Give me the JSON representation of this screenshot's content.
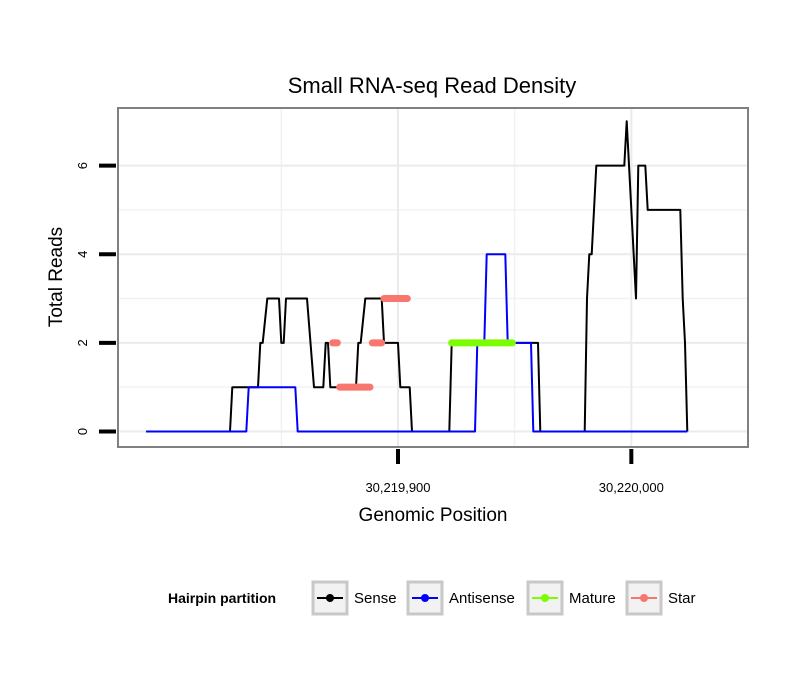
{
  "chart_data": {
    "type": "line",
    "title": "Small RNA-seq Read Density",
    "xlabel": "Genomic Position",
    "ylabel": "Total Reads",
    "xlim": [
      30219780,
      30220050
    ],
    "ylim": [
      -0.35,
      7.3
    ],
    "grid": true,
    "x_ticks": [
      {
        "value": 30219900,
        "label": "30,219,900"
      },
      {
        "value": 30220000,
        "label": "30,220,000"
      }
    ],
    "y_ticks": [
      {
        "value": 0,
        "label": "0"
      },
      {
        "value": 2,
        "label": "2"
      },
      {
        "value": 4,
        "label": "4"
      },
      {
        "value": 6,
        "label": "6"
      }
    ],
    "legend": {
      "title": "Hairpin partition",
      "placement": "bottom",
      "entries": [
        {
          "name": "Sense",
          "color": "#000000"
        },
        {
          "name": "Antisense",
          "color": "#0000ff"
        },
        {
          "name": "Mature",
          "color": "#7cfc00"
        },
        {
          "name": "Star",
          "color": "#f8766d"
        }
      ]
    },
    "series": [
      {
        "name": "Sense",
        "color": "#000000",
        "style": "line",
        "points": [
          [
            30219792,
            0
          ],
          [
            30219828,
            0
          ],
          [
            30219829,
            1
          ],
          [
            30219840,
            1
          ],
          [
            30219841,
            2
          ],
          [
            30219842,
            2
          ],
          [
            30219844,
            3
          ],
          [
            30219849,
            3
          ],
          [
            30219850,
            2
          ],
          [
            30219851,
            2
          ],
          [
            30219852,
            3
          ],
          [
            30219861,
            3
          ],
          [
            30219864,
            1
          ],
          [
            30219868,
            1
          ],
          [
            30219869,
            2
          ],
          [
            30219870,
            2
          ],
          [
            30219871,
            1
          ],
          [
            30219882,
            1
          ],
          [
            30219883,
            2
          ],
          [
            30219884,
            2
          ],
          [
            30219886,
            3
          ],
          [
            30219893,
            3
          ],
          [
            30219894,
            2
          ],
          [
            30219900,
            2
          ],
          [
            30219901,
            1
          ],
          [
            30219905,
            1
          ],
          [
            30219906,
            0
          ],
          [
            30219922,
            0
          ],
          [
            30219923,
            2
          ],
          [
            30219960,
            2
          ],
          [
            30219961,
            0
          ],
          [
            30219980,
            0
          ],
          [
            30219981,
            3
          ],
          [
            30219982,
            4
          ],
          [
            30219983,
            4
          ],
          [
            30219984,
            5
          ],
          [
            30219985,
            6
          ],
          [
            30219997,
            6
          ],
          [
            30219998,
            7
          ],
          [
            30220002,
            3
          ],
          [
            30220003,
            6
          ],
          [
            30220006,
            6
          ],
          [
            30220007,
            5
          ],
          [
            30220021,
            5
          ],
          [
            30220022,
            3
          ],
          [
            30220023,
            2
          ],
          [
            30220024,
            0
          ]
        ]
      },
      {
        "name": "Antisense",
        "color": "#0000ff",
        "style": "line",
        "points": [
          [
            30219792,
            0
          ],
          [
            30219835,
            0
          ],
          [
            30219836,
            1
          ],
          [
            30219856,
            1
          ],
          [
            30219857,
            0
          ],
          [
            30219933,
            0
          ],
          [
            30219934,
            2
          ],
          [
            30219937,
            2
          ],
          [
            30219938,
            4
          ],
          [
            30219946,
            4
          ],
          [
            30219947,
            2
          ],
          [
            30219957,
            2
          ],
          [
            30219958,
            0
          ],
          [
            30220024,
            0
          ]
        ]
      },
      {
        "name": "Mature",
        "color": "#7cfc00",
        "style": "segment",
        "points": [
          [
            30219923,
            2
          ],
          [
            30219949,
            2
          ]
        ]
      },
      {
        "name": "Star",
        "color": "#f8766d",
        "style": "segment",
        "points": [
          [
            30219872,
            2
          ],
          [
            30219874,
            2
          ],
          [
            30219875,
            1
          ],
          [
            30219888,
            1
          ],
          [
            30219889,
            2
          ],
          [
            30219893,
            2
          ],
          [
            30219894,
            3
          ],
          [
            30219904,
            3
          ]
        ]
      }
    ]
  }
}
